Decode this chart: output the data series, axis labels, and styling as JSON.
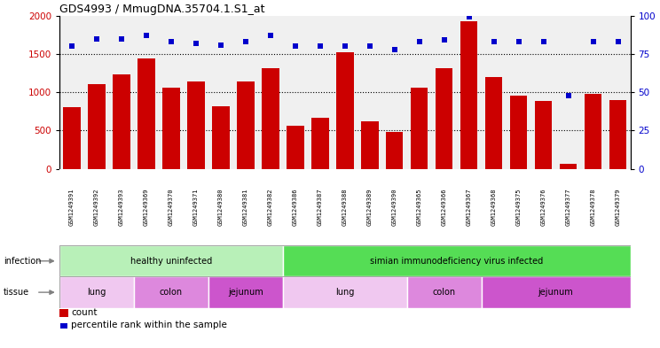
{
  "title": "GDS4993 / MmugDNA.35704.1.S1_at",
  "samples": [
    "GSM1249391",
    "GSM1249392",
    "GSM1249393",
    "GSM1249369",
    "GSM1249370",
    "GSM1249371",
    "GSM1249380",
    "GSM1249381",
    "GSM1249382",
    "GSM1249386",
    "GSM1249387",
    "GSM1249388",
    "GSM1249389",
    "GSM1249390",
    "GSM1249365",
    "GSM1249366",
    "GSM1249367",
    "GSM1249368",
    "GSM1249375",
    "GSM1249376",
    "GSM1249377",
    "GSM1249378",
    "GSM1249379"
  ],
  "counts": [
    800,
    1100,
    1230,
    1440,
    1060,
    1140,
    820,
    1140,
    1310,
    560,
    665,
    1520,
    615,
    480,
    1060,
    1310,
    1930,
    1200,
    960,
    890,
    65,
    980,
    895
  ],
  "percentile": [
    80,
    85,
    85,
    87,
    83,
    82,
    81,
    83,
    87,
    80,
    80,
    80,
    80,
    78,
    83,
    84,
    99,
    83,
    83,
    83,
    48,
    83,
    83
  ],
  "bar_color": "#cc0000",
  "dot_color": "#0000cc",
  "ylim_left": [
    0,
    2000
  ],
  "ylim_right": [
    0,
    100
  ],
  "yticks_left": [
    0,
    500,
    1000,
    1500,
    2000
  ],
  "yticks_right": [
    0,
    25,
    50,
    75,
    100
  ],
  "grid_values": [
    500,
    1000,
    1500
  ],
  "infection_groups": [
    {
      "label": "healthy uninfected",
      "start": 0,
      "end": 9,
      "color": "#b8f0b8"
    },
    {
      "label": "simian immunodeficiency virus infected",
      "start": 9,
      "end": 23,
      "color": "#55dd55"
    }
  ],
  "tissue_groups": [
    {
      "label": "lung",
      "start": 0,
      "end": 3,
      "color": "#f0c8f0"
    },
    {
      "label": "colon",
      "start": 3,
      "end": 6,
      "color": "#dd88dd"
    },
    {
      "label": "jejunum",
      "start": 6,
      "end": 9,
      "color": "#cc55cc"
    },
    {
      "label": "lung",
      "start": 9,
      "end": 14,
      "color": "#f0c8f0"
    },
    {
      "label": "colon",
      "start": 14,
      "end": 17,
      "color": "#dd88dd"
    },
    {
      "label": "jejunum",
      "start": 17,
      "end": 23,
      "color": "#cc55cc"
    }
  ],
  "infection_label": "infection",
  "tissue_label": "tissue",
  "legend_count_label": "count",
  "legend_pct_label": "percentile rank within the sample",
  "xtick_bg": "#d4d4d4",
  "plot_bg": "#f0f0f0",
  "bar_width": 0.7
}
